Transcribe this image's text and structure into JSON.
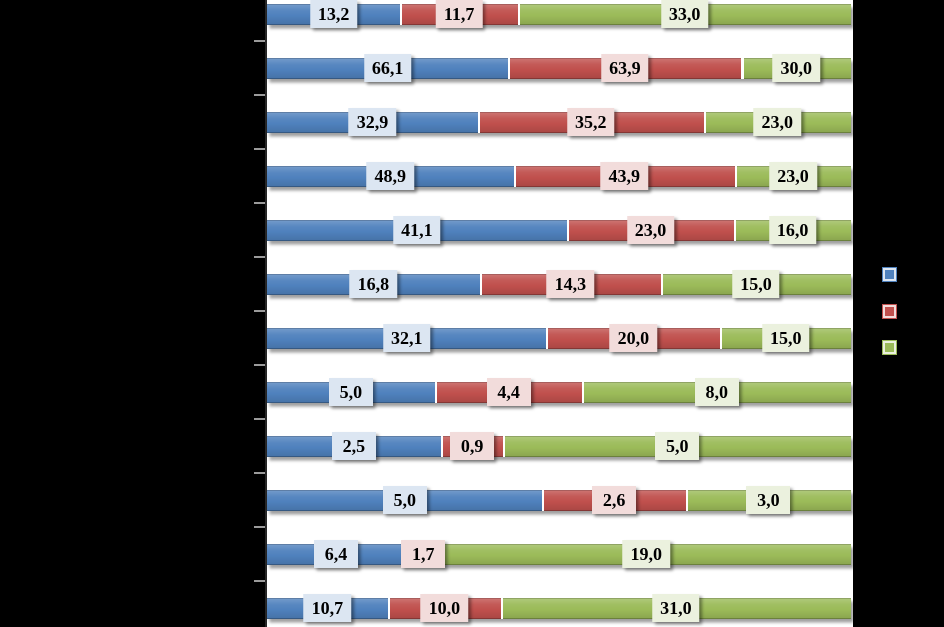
{
  "colors": {
    "background": "#000000",
    "plot_background": "#FFFFFF",
    "axis_line": "#262626",
    "tick": "#9B9B9B"
  },
  "chart_data": {
    "type": "bar",
    "orientation": "horizontal",
    "stacking": "percent",
    "title": "",
    "num_categories": 12,
    "categories": [
      "",
      "",
      "",
      "",
      "",
      "",
      "",
      "",
      "",
      "",
      "",
      ""
    ],
    "category_labels_visible": false,
    "series": [
      {
        "name": "blue",
        "color": "#4F81BD",
        "label_bg": "#DCE6F2",
        "values": [
          13.2,
          66.1,
          32.9,
          48.9,
          41.1,
          16.8,
          32.1,
          5.0,
          2.5,
          5.0,
          6.4,
          10.7
        ],
        "labels": [
          "13,2",
          "66,1",
          "32,9",
          "48,9",
          "41,1",
          "16,8",
          "32,1",
          "5,0",
          "2,5",
          "5,0",
          "6,4",
          "10,7"
        ]
      },
      {
        "name": "red",
        "color": "#C0504D",
        "label_bg": "#F2DCDB",
        "values": [
          11.7,
          63.9,
          35.2,
          43.9,
          23.0,
          14.3,
          20.0,
          4.4,
          0.9,
          2.6,
          1.7,
          10.0
        ],
        "labels": [
          "11,7",
          "63,9",
          "35,2",
          "43,9",
          "23,0",
          "14,3",
          "20,0",
          "4,4",
          "0,9",
          "2,6",
          "1,7",
          "10,0"
        ]
      },
      {
        "name": "green",
        "color": "#9BBB59",
        "label_bg": "#EBF1DE",
        "values": [
          33.0,
          30.0,
          23.0,
          23.0,
          16.0,
          15.0,
          15.0,
          8.0,
          5.0,
          3.0,
          19.0,
          31.0
        ],
        "labels": [
          "33,0",
          "30,0",
          "23,0",
          "23,0",
          "16,0",
          "15,0",
          "15,0",
          "8,0",
          "5,0",
          "3,0",
          "19,0",
          "31,0"
        ]
      }
    ],
    "value_labels": {
      "visible": true,
      "decimal_separator": ","
    },
    "legend": {
      "position": "right",
      "labels_visible": false
    },
    "axis": {
      "y_tick_count": 11,
      "x_axis_labels_visible": false
    }
  }
}
